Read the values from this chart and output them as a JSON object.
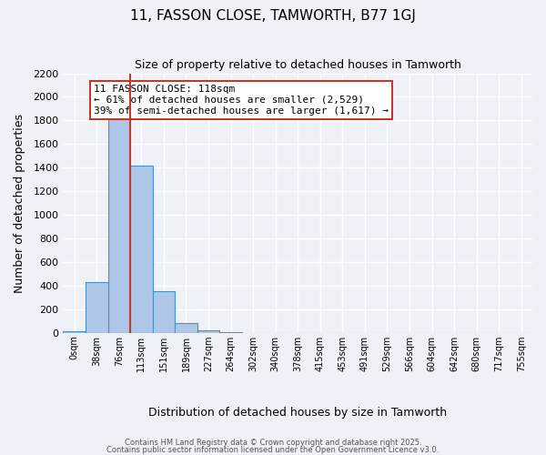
{
  "title": "11, FASSON CLOSE, TAMWORTH, B77 1GJ",
  "subtitle": "Size of property relative to detached houses in Tamworth",
  "xlabel": "Distribution of detached houses by size in Tamworth",
  "ylabel": "Number of detached properties",
  "bin_labels": [
    "0sqm",
    "38sqm",
    "76sqm",
    "113sqm",
    "151sqm",
    "189sqm",
    "227sqm",
    "264sqm",
    "302sqm",
    "340sqm",
    "378sqm",
    "415sqm",
    "453sqm",
    "491sqm",
    "529sqm",
    "566sqm",
    "604sqm",
    "642sqm",
    "680sqm",
    "717sqm",
    "755sqm"
  ],
  "bar_heights": [
    10,
    430,
    1830,
    1420,
    350,
    80,
    25,
    5,
    0,
    0,
    0,
    0,
    0,
    0,
    0,
    0,
    0,
    0,
    0,
    0,
    0
  ],
  "bar_color": "#aec6e8",
  "bar_edge_color": "#4a90c4",
  "property_line_color": "#c0392b",
  "ylim": [
    0,
    2200
  ],
  "yticks": [
    0,
    200,
    400,
    600,
    800,
    1000,
    1200,
    1400,
    1600,
    1800,
    2000,
    2200
  ],
  "bg_color": "#eef2f8",
  "grid_color": "#ffffff",
  "annotation_box_text": "11 FASSON CLOSE: 118sqm\n← 61% of detached houses are smaller (2,529)\n39% of semi-detached houses are larger (1,617) →",
  "annotation_box_color": "#c0392b",
  "footer1": "Contains HM Land Registry data © Crown copyright and database right 2025.",
  "footer2": "Contains public sector information licensed under the Open Government Licence v3.0."
}
